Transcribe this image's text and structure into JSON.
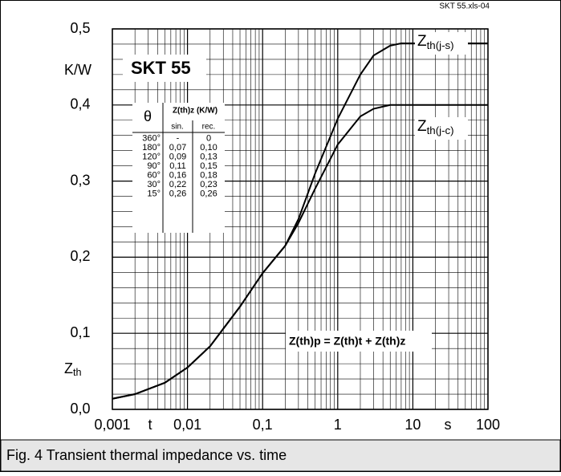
{
  "chart_data": {
    "type": "line",
    "title": "SKT 55",
    "source": "SKT 55.xls-04",
    "x": [
      0.001,
      0.002,
      0.005,
      0.01,
      0.02,
      0.05,
      0.1,
      0.2,
      0.3,
      0.5,
      1,
      2,
      3,
      5,
      7,
      10,
      100
    ],
    "series": [
      {
        "name": "Zth(j-s)",
        "color": "#000000",
        "values": [
          0.014,
          0.02,
          0.035,
          0.055,
          0.083,
          0.135,
          0.179,
          0.215,
          0.25,
          0.31,
          0.382,
          0.44,
          0.465,
          0.478,
          0.481,
          0.481,
          0.481
        ]
      },
      {
        "name": "Zth(j-c)",
        "color": "#000000",
        "values": [
          0.014,
          0.02,
          0.035,
          0.055,
          0.083,
          0.135,
          0.179,
          0.215,
          0.245,
          0.29,
          0.348,
          0.385,
          0.395,
          0.4,
          0.4,
          0.4,
          0.4
        ]
      }
    ],
    "xlim": [
      0.001,
      100
    ],
    "log_x": true,
    "xticks": [
      {
        "value": 0.001,
        "label": "0,001"
      },
      {
        "value": 0.01,
        "label": "0,01"
      },
      {
        "value": 0.1,
        "label": "0,1"
      },
      1,
      10,
      100
    ],
    "ylim": [
      0,
      0.5
    ],
    "yticks": [
      {
        "value": 0,
        "label": "0,0"
      },
      {
        "value": 0.1,
        "label": "0,1"
      },
      {
        "value": 0.2,
        "label": "0,2"
      },
      {
        "value": 0.3,
        "label": "0,3"
      },
      {
        "value": 0.4,
        "label": "0,4"
      },
      {
        "value": 0.5,
        "label": "0,5"
      }
    ],
    "grid": true,
    "xlabel": "t",
    "xunit": "s",
    "ylabel": "Zth",
    "yunit": "K/W",
    "annotation": "Z(th)p = Z(th)t + Z(th)z",
    "table": {
      "header": [
        "θ",
        "Z(th)z (K/W)"
      ],
      "subheader": [
        "sin.",
        "rec."
      ],
      "rows": [
        [
          "360°",
          "-",
          "0"
        ],
        [
          "180°",
          "0,07",
          "0,10"
        ],
        [
          "120°",
          "0,09",
          "0,13"
        ],
        [
          "90°",
          "0,11",
          "0,15"
        ],
        [
          "60°",
          "0,16",
          "0,18"
        ],
        [
          "30°",
          "0,22",
          "0,23"
        ],
        [
          "15°",
          "0,26",
          "0,26"
        ]
      ]
    }
  },
  "caption": "Fig. 4 Transient thermal impedance vs. time"
}
